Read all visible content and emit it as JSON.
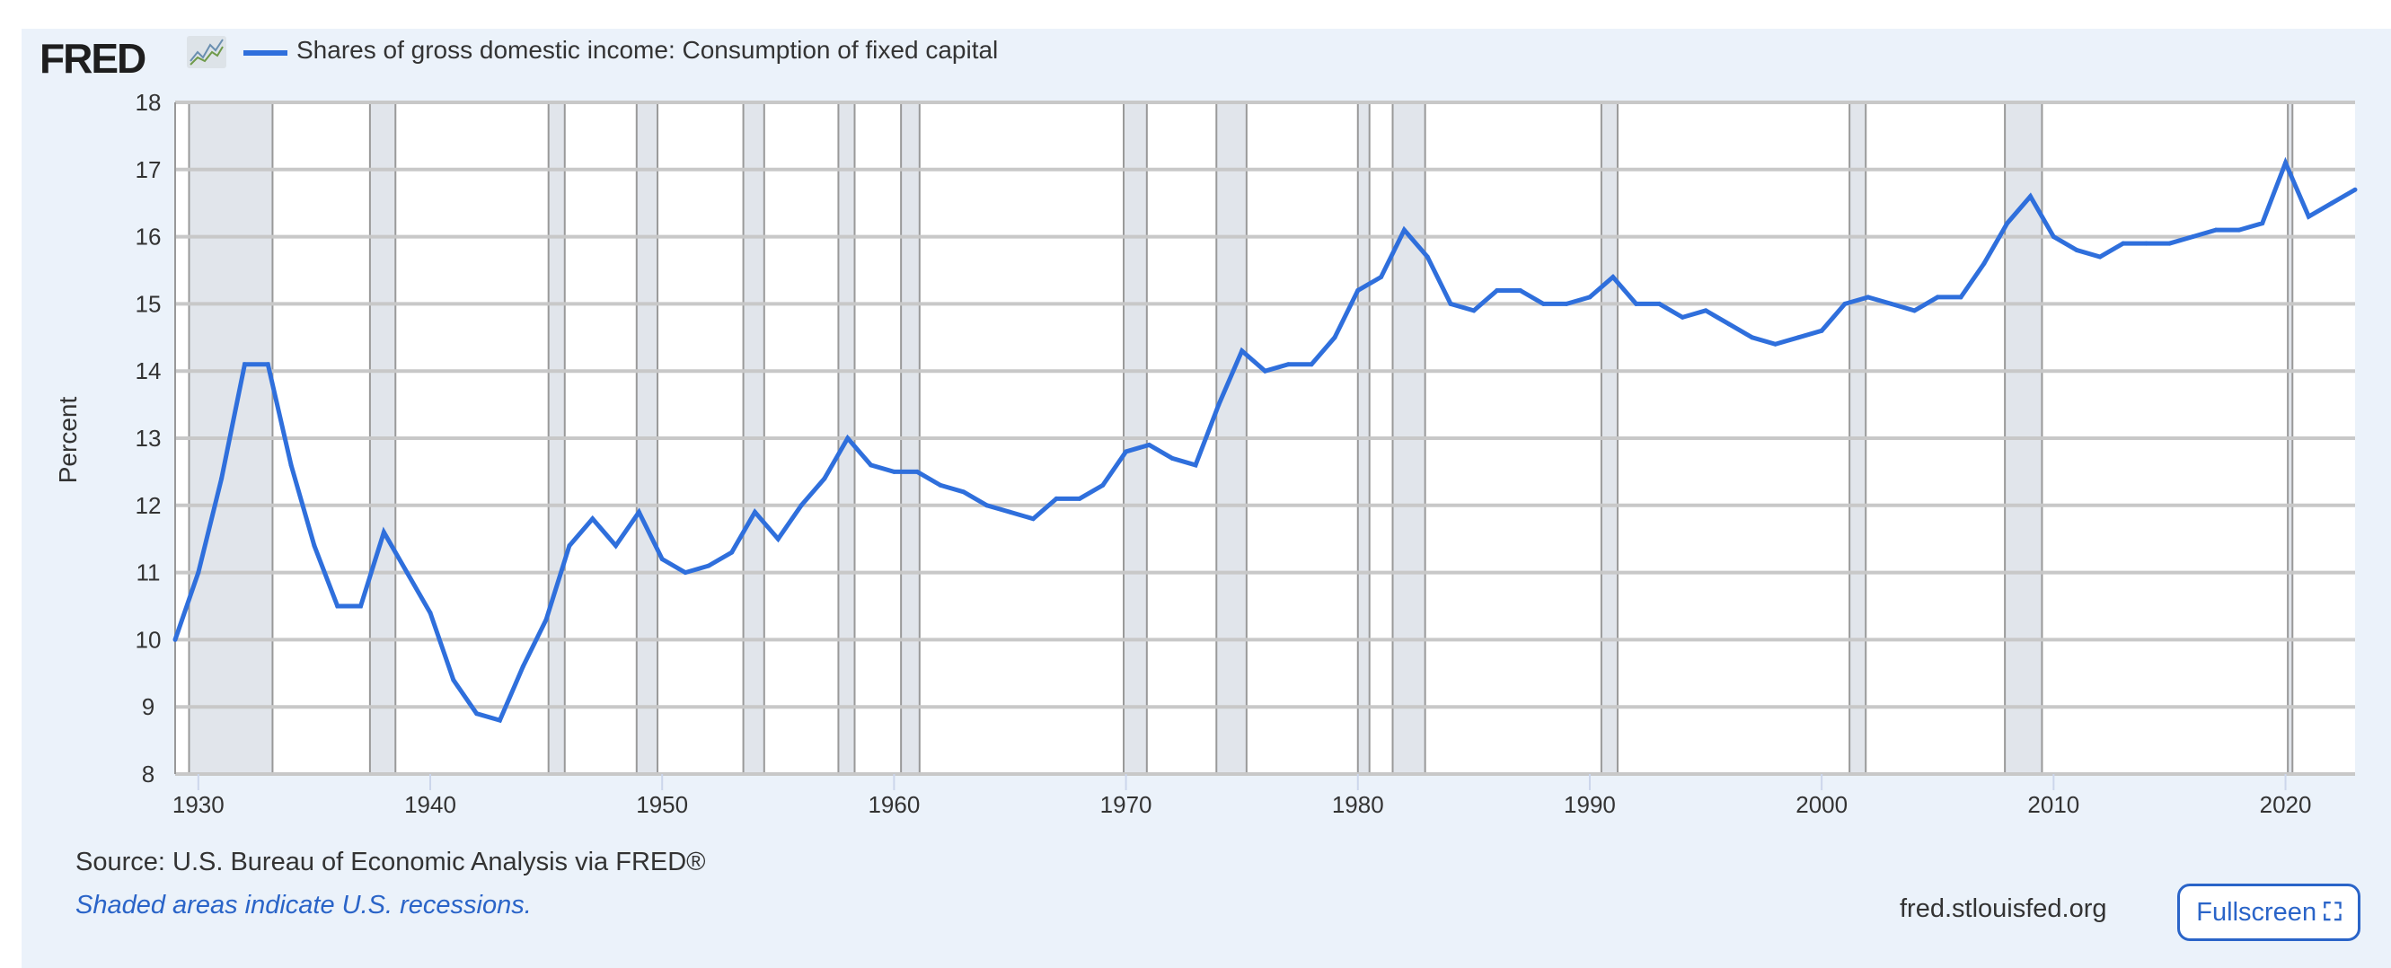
{
  "header": {
    "logo_text": "FRED",
    "legend_label": "Shares of gross domestic income: Consumption of fixed capital"
  },
  "footer": {
    "source": "Source: U.S. Bureau of Economic Analysis via FRED®",
    "shaded_note": "Shaded areas indicate U.S. recessions.",
    "site": "fred.stlouisfed.org",
    "fullscreen_label": "Fullscreen",
    "fullscreen_icon": "expand-icon"
  },
  "colors": {
    "line": "#2f6fdc",
    "background": "#ebf2fa",
    "recession": "#e1e5eb",
    "grid": "#c8c8c8"
  },
  "chart_data": {
    "type": "line",
    "title": "Shares of gross domestic income: Consumption of fixed capital",
    "xlabel": "",
    "ylabel": "Percent",
    "xlim": [
      1929,
      2023
    ],
    "ylim": [
      8,
      18
    ],
    "yticks": [
      "8",
      "9",
      "10",
      "11",
      "12",
      "13",
      "14",
      "15",
      "16",
      "17",
      "18"
    ],
    "xticks": [
      "1930",
      "1940",
      "1950",
      "1960",
      "1970",
      "1980",
      "1990",
      "2000",
      "2010",
      "2020"
    ],
    "grid": true,
    "legend_position": "top-left",
    "recessions": [
      [
        1929.6,
        1933.2
      ],
      [
        1937.4,
        1938.5
      ],
      [
        1945.1,
        1945.8
      ],
      [
        1948.9,
        1949.8
      ],
      [
        1953.5,
        1954.4
      ],
      [
        1957.6,
        1958.3
      ],
      [
        1960.3,
        1961.1
      ],
      [
        1969.9,
        1970.9
      ],
      [
        1973.9,
        1975.2
      ],
      [
        1980.0,
        1980.5
      ],
      [
        1981.5,
        1982.9
      ],
      [
        1990.5,
        1991.2
      ],
      [
        2001.2,
        2001.9
      ],
      [
        2007.9,
        2009.5
      ],
      [
        2020.1,
        2020.3
      ]
    ],
    "series": [
      {
        "name": "Shares of gross domestic income: Consumption of fixed capital",
        "x": [
          1929,
          1930,
          1931,
          1932,
          1933,
          1934,
          1935,
          1936,
          1937,
          1938,
          1939,
          1940,
          1941,
          1942,
          1943,
          1944,
          1945,
          1946,
          1947,
          1948,
          1949,
          1950,
          1951,
          1952,
          1953,
          1954,
          1955,
          1956,
          1957,
          1958,
          1959,
          1960,
          1961,
          1962,
          1963,
          1964,
          1965,
          1966,
          1967,
          1968,
          1969,
          1970,
          1971,
          1972,
          1973,
          1974,
          1975,
          1976,
          1977,
          1978,
          1979,
          1980,
          1981,
          1982,
          1983,
          1984,
          1985,
          1986,
          1987,
          1988,
          1989,
          1990,
          1991,
          1992,
          1993,
          1994,
          1995,
          1996,
          1997,
          1998,
          1999,
          2000,
          2001,
          2002,
          2003,
          2004,
          2005,
          2006,
          2007,
          2008,
          2009,
          2010,
          2011,
          2012,
          2013,
          2014,
          2015,
          2016,
          2017,
          2018,
          2019,
          2020,
          2021,
          2022,
          2023
        ],
        "values": [
          10.0,
          11.0,
          12.4,
          14.1,
          14.1,
          12.6,
          11.4,
          10.5,
          10.5,
          11.6,
          11.0,
          10.4,
          9.4,
          8.9,
          8.8,
          9.6,
          10.3,
          11.4,
          11.8,
          11.4,
          11.9,
          11.2,
          11.0,
          11.1,
          11.3,
          11.9,
          11.5,
          12.0,
          12.4,
          13.0,
          12.6,
          12.5,
          12.5,
          12.3,
          12.2,
          12.0,
          11.9,
          11.8,
          12.1,
          12.1,
          12.3,
          12.8,
          12.9,
          12.7,
          12.6,
          13.5,
          14.3,
          14.0,
          14.1,
          14.1,
          14.5,
          15.2,
          15.4,
          16.1,
          15.7,
          15.0,
          14.9,
          15.2,
          15.2,
          15.0,
          15.0,
          15.1,
          15.4,
          15.0,
          15.0,
          14.8,
          14.9,
          14.7,
          14.5,
          14.4,
          14.5,
          14.6,
          15.0,
          15.1,
          15.0,
          14.9,
          15.1,
          15.1,
          15.6,
          16.2,
          16.6,
          16.0,
          15.8,
          15.7,
          15.9,
          15.9,
          15.9,
          16.0,
          16.1,
          16.1,
          16.2,
          17.1,
          16.3,
          16.5,
          16.7
        ]
      }
    ]
  }
}
